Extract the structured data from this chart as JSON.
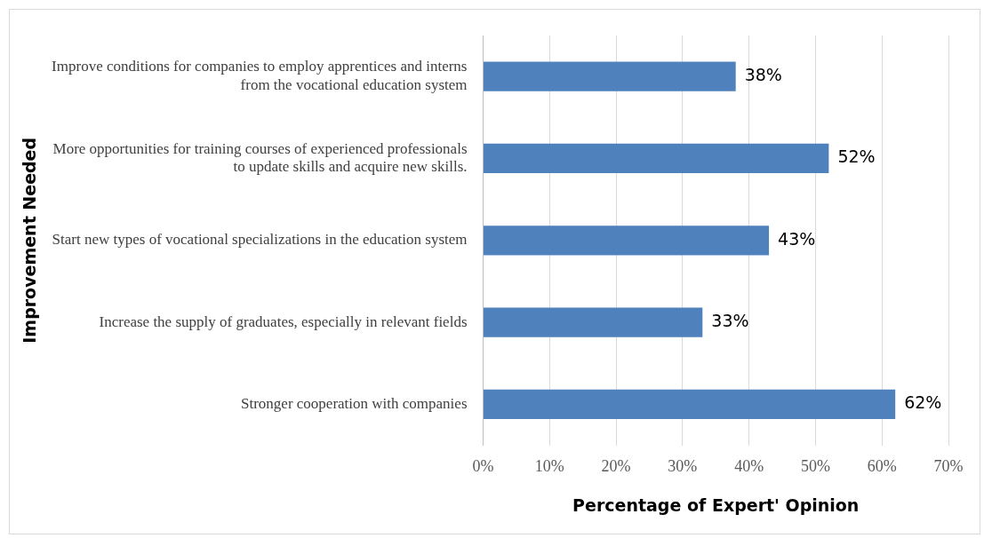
{
  "chart_data": {
    "type": "bar",
    "orientation": "horizontal",
    "xlabel": "Percentage of Expert' Opinion",
    "ylabel": "Improvement Needed",
    "categories": [
      "Improve conditions for companies to employ apprentices and interns from the vocational education system",
      "More opportunities for training courses of experienced professionals to update skills and acquire new skills.",
      "Start new types of vocational specializations in the education system",
      "Increase the supply of graduates, especially in relevant fields",
      "Stronger cooperation with companies"
    ],
    "values": [
      38,
      52,
      43,
      33,
      62
    ],
    "color": "#4f81bd",
    "value_labels": [
      "38%",
      "52%",
      "43%",
      "33%",
      "62%"
    ],
    "xlim": [
      0,
      70
    ],
    "xticks": [
      {
        "value": 0,
        "label": "0%"
      },
      {
        "value": 10,
        "label": "10%"
      },
      {
        "value": 20,
        "label": "20%"
      },
      {
        "value": 30,
        "label": "30%"
      },
      {
        "value": 40,
        "label": "40%"
      },
      {
        "value": 50,
        "label": "50%"
      },
      {
        "value": 60,
        "label": "60%"
      },
      {
        "value": 70,
        "label": "70%"
      }
    ],
    "grid": "x",
    "legend": false
  }
}
